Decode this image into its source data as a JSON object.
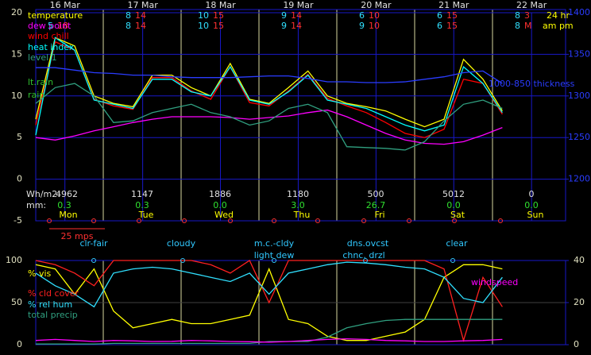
{
  "chart_data": [
    {
      "type": "line",
      "x": [
        3,
        9,
        15,
        21,
        27,
        33,
        39,
        45,
        51,
        57,
        63,
        69,
        75,
        81,
        87,
        93,
        99,
        105,
        111,
        117,
        123,
        129,
        135,
        141,
        147
      ],
      "xlim": [
        3,
        166.5
      ],
      "xticks": [
        {
          "value": 12,
          "label": "16 Mar"
        },
        {
          "value": 36,
          "label": "17 Mar"
        },
        {
          "value": 60,
          "label": "18 Mar"
        },
        {
          "value": 84,
          "label": "19 Mar"
        },
        {
          "value": 108,
          "label": "20 Mar"
        },
        {
          "value": 132,
          "label": "21 Mar"
        },
        {
          "value": 156,
          "label": "22 Mar"
        }
      ],
      "ylim": [
        -5,
        20
      ],
      "yticks": [
        -5,
        0,
        5,
        10,
        15,
        20
      ],
      "y2lim": [
        1150,
        1400
      ],
      "y2ticks": [
        1200,
        1250,
        1300,
        1350,
        1400
      ],
      "grid": true,
      "series": [
        {
          "name": "temperature",
          "color": "#ffff00",
          "values": [
            7.2,
            17,
            16,
            10,
            9.1,
            8.7,
            12.5,
            12.5,
            11,
            10,
            13.9,
            9.6,
            9.1,
            11,
            13,
            10,
            9.1,
            8.7,
            8.2,
            7.2,
            6.3,
            7.2,
            14.4,
            12,
            8.2
          ]
        },
        {
          "name": "dew point",
          "color": "#ff00ff",
          "values": [
            5,
            4.7,
            5.2,
            5.8,
            6.3,
            6.8,
            7.2,
            7.5,
            7.5,
            7.5,
            7.4,
            7.2,
            7.4,
            7.6,
            8,
            8.3,
            7.5,
            6.5,
            5.5,
            4.7,
            4.3,
            4.2,
            4.5,
            5.3,
            6.2
          ]
        },
        {
          "name": "wind chill",
          "color": "#ff0000",
          "values": [
            6.5,
            16.5,
            15.5,
            9.6,
            8.8,
            8.4,
            12.2,
            12.2,
            10.6,
            9.6,
            13.5,
            9.2,
            8.8,
            10.6,
            12.6,
            9.7,
            8.8,
            8,
            6.8,
            5.5,
            5,
            6,
            12,
            11.5,
            7.8
          ]
        },
        {
          "name": "heat index",
          "color": "#00ffff",
          "values": [
            5.3,
            17,
            15.5,
            9.5,
            9,
            8.5,
            12,
            12,
            10.5,
            10,
            13.5,
            9.5,
            9,
            10.5,
            12.5,
            9.5,
            9,
            8.5,
            7.5,
            6.5,
            5.8,
            6.5,
            13.5,
            11.5,
            8
          ]
        },
        {
          "name": "level 1",
          "color": "#30a080",
          "values": [
            9.1,
            11,
            11.5,
            10,
            6.8,
            7,
            8,
            8.5,
            9,
            8,
            7.5,
            6.5,
            7,
            8.5,
            9,
            8,
            3.9,
            3.8,
            3.7,
            3.5,
            4.5,
            7,
            9,
            9.5,
            8.5
          ]
        },
        {
          "name": "1000-850 thickness",
          "color": "#2a3cff",
          "axis": "y2",
          "values": [
            1334,
            1334,
            1331,
            1328,
            1327,
            1325,
            1325,
            1323,
            1322,
            1322,
            1322,
            1323,
            1324,
            1324,
            1321,
            1317,
            1317,
            1316,
            1316,
            1317,
            1320,
            1323,
            1328,
            1330,
            1315
          ]
        }
      ],
      "annotations": [
        "lt.rain",
        "rain"
      ],
      "hilo_row1": [
        [
          "8",
          "14"
        ],
        [
          "10",
          "15"
        ],
        [
          "9",
          "14"
        ],
        [
          "6",
          "10"
        ],
        [
          "6",
          "15"
        ],
        [
          "8",
          "3"
        ]
      ],
      "hilo_row2": [
        [
          "5",
          "18"
        ],
        [
          "8",
          "14"
        ],
        [
          "10",
          "15"
        ],
        [
          "9",
          "14"
        ],
        [
          "9",
          "10"
        ],
        [
          "6",
          "15"
        ],
        [
          "8",
          "M"
        ]
      ],
      "hilo_units": [
        "24 hr",
        "am pm"
      ],
      "radiation_label": "Wh/m2:",
      "radiation": [
        "4962",
        "1147",
        "1886",
        "1180",
        "500",
        "5012",
        "0"
      ],
      "precip_label": "mm:",
      "precip": [
        "0.3",
        "0.3",
        "0.0",
        "3.0",
        "26.7",
        "0.0",
        "0.0"
      ],
      "days": [
        "Mon",
        "Tue",
        "Wed",
        "Thu",
        "Fri",
        "Sat",
        "Sun"
      ],
      "wind_scale": "25 mps"
    },
    {
      "type": "line",
      "x": [
        3,
        9,
        15,
        21,
        27,
        33,
        39,
        45,
        51,
        57,
        63,
        69,
        75,
        81,
        87,
        93,
        99,
        105,
        111,
        117,
        123,
        129,
        135,
        141,
        147
      ],
      "xlim": [
        3,
        166.5
      ],
      "ylim": [
        0,
        100
      ],
      "yticks": [
        0,
        50,
        100
      ],
      "y2lim": [
        0,
        40
      ],
      "y2ticks": [
        0,
        20,
        40
      ],
      "series": [
        {
          "name": "% vis",
          "color": "#ffff00",
          "values": [
            95,
            90,
            60,
            90,
            40,
            20,
            25,
            30,
            25,
            25,
            30,
            35,
            90,
            30,
            25,
            10,
            5,
            5,
            10,
            15,
            30,
            80,
            95,
            95,
            90
          ]
        },
        {
          "name": "% cld cover",
          "color": "#ff2020",
          "values": [
            100,
            95,
            85,
            70,
            100,
            100,
            100,
            100,
            100,
            95,
            85,
            100,
            50,
            100,
            100,
            100,
            100,
            100,
            100,
            100,
            100,
            90,
            5,
            80,
            45
          ]
        },
        {
          "name": "% rel hum",
          "color": "#30e0ff",
          "values": [
            85,
            70,
            60,
            45,
            85,
            90,
            92,
            90,
            85,
            80,
            75,
            85,
            60,
            85,
            90,
            95,
            98,
            97,
            95,
            92,
            90,
            80,
            55,
            50,
            80
          ]
        },
        {
          "name": "total precip",
          "color": "#30a080",
          "axis": "y2",
          "values": [
            0.3,
            0.3,
            0.3,
            0.3,
            0.6,
            0.6,
            0.6,
            0.6,
            0.6,
            0.6,
            0.6,
            0.6,
            1.5,
            1.5,
            1.5,
            3.6,
            8,
            10,
            11.5,
            12,
            12,
            12,
            12,
            12,
            12
          ]
        },
        {
          "name": "windspeed",
          "color": "#ff00ff",
          "axis": "y2",
          "values": [
            2,
            2.5,
            2,
            1.5,
            2,
            1.8,
            1.5,
            1.6,
            2,
            1.8,
            1.5,
            1.4,
            1.2,
            1.5,
            2,
            2.5,
            2.8,
            2.5,
            2,
            1.8,
            1.5,
            1.5,
            1.8,
            2,
            2.5
          ]
        }
      ],
      "conditions": [
        "clr-fair",
        "cloudy",
        "m.c.-cldy",
        "light dew",
        "dns.ovcst",
        "chnc. drzl",
        "clear"
      ]
    }
  ]
}
